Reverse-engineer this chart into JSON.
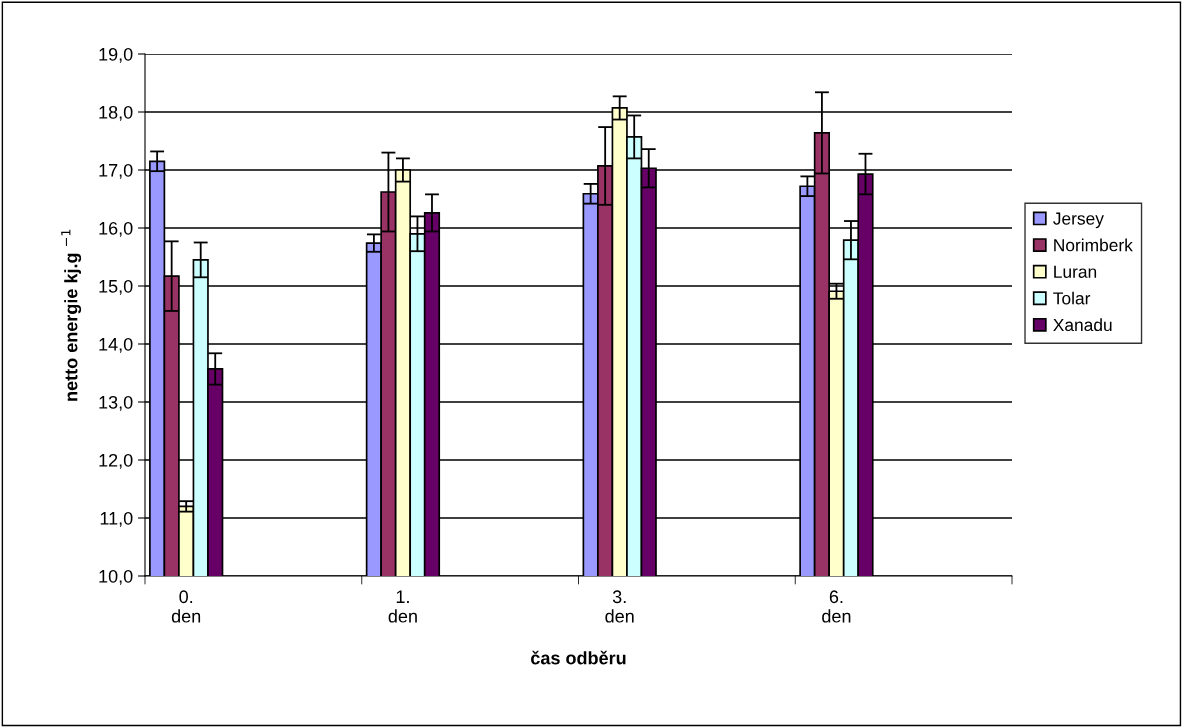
{
  "chart_data": {
    "type": "bar",
    "xlabel": "čas odběru",
    "ylabel": "netto energie kj.g $^{−1}$",
    "categories": [
      "0.\nden",
      "1.\nden",
      "3.\nden",
      "6.\nden"
    ],
    "series": [
      {
        "name": "Jersey",
        "color": "#9999ff",
        "values": [
          17.15,
          15.74,
          16.59,
          16.72
        ],
        "errors": [
          0.17,
          0.15,
          0.17,
          0.17
        ]
      },
      {
        "name": "Norimberk",
        "color": "#993366",
        "values": [
          15.17,
          16.62,
          17.07,
          17.64
        ],
        "errors": [
          0.6,
          0.68,
          0.67,
          0.7
        ]
      },
      {
        "name": "Luran",
        "color": "#ffffcc",
        "values": [
          11.2,
          17.0,
          18.07,
          14.91
        ],
        "errors": [
          0.09,
          0.2,
          0.2,
          0.13
        ]
      },
      {
        "name": "Tolar",
        "color": "#ccffff",
        "values": [
          15.45,
          15.9,
          17.57,
          15.79
        ],
        "errors": [
          0.3,
          0.3,
          0.37,
          0.33
        ]
      },
      {
        "name": "Xanadu",
        "color": "#660066",
        "values": [
          13.57,
          16.26,
          17.03,
          16.93
        ],
        "errors": [
          0.27,
          0.32,
          0.33,
          0.35
        ]
      }
    ],
    "ylim": [
      10,
      19
    ],
    "yticks": [
      {
        "value": 10,
        "label": "10,0"
      },
      {
        "value": 11,
        "label": "11,0"
      },
      {
        "value": 12,
        "label": "12,0"
      },
      {
        "value": 13,
        "label": "13,0"
      },
      {
        "value": 14,
        "label": "14,0"
      },
      {
        "value": 15,
        "label": "15,0"
      },
      {
        "value": 16,
        "label": "16,0"
      },
      {
        "value": 17,
        "label": "17,0"
      },
      {
        "value": 18,
        "label": "18,0"
      },
      {
        "value": 19,
        "label": "19,0"
      }
    ],
    "grid": "y",
    "legend": "right"
  }
}
